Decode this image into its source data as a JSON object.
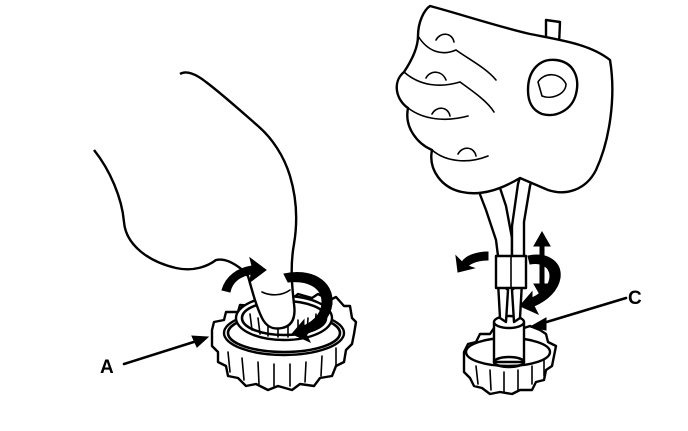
{
  "callouts": {
    "a": "A",
    "c": "C"
  },
  "colors": {
    "ink": "#000000",
    "background": "#ffffff"
  }
}
